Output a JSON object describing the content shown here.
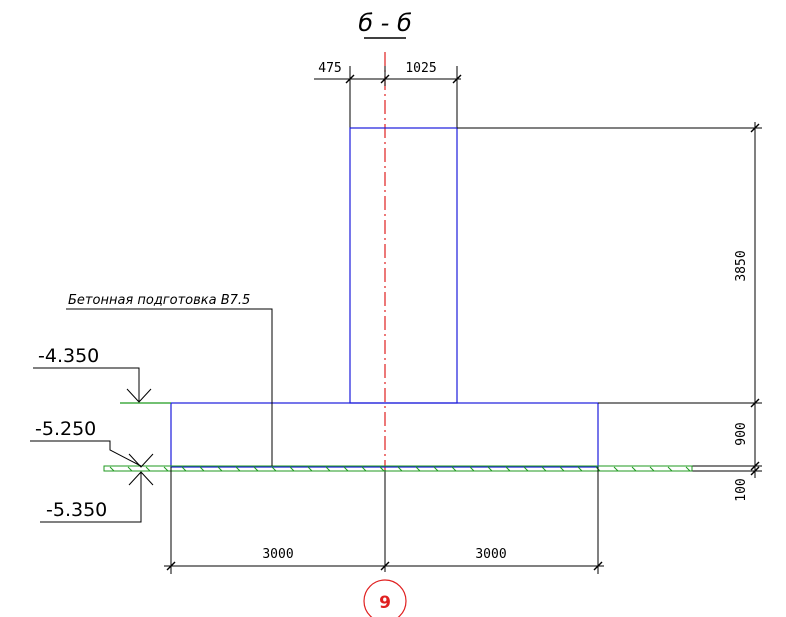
{
  "section": {
    "title": "б - б"
  },
  "dimensions": {
    "left_offset": "475",
    "right_offset": "1025",
    "column_height": "3850",
    "footing_height": "900",
    "prep_thickness": "100",
    "left_half": "3000",
    "right_half": "3000"
  },
  "elevations": {
    "top_footing": "-4.350",
    "bottom_footing": "-5.250",
    "bottom_prep": "-5.350"
  },
  "callout": {
    "label": "Бетонная подготовка В7.5"
  },
  "axis": {
    "label": "9",
    "color": "#e02020"
  },
  "colors": {
    "outline": "#1a1adb",
    "hatch": "#1f9a1f",
    "line": "#000000"
  }
}
